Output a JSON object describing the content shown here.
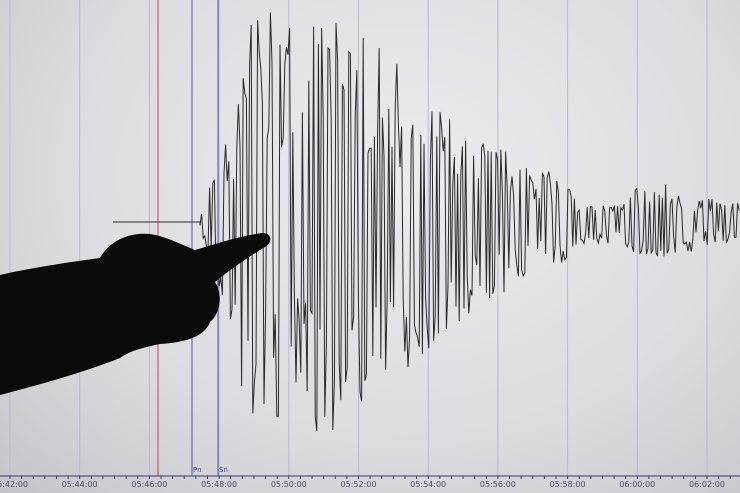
{
  "time_axis": {
    "labels": [
      "05:42:00",
      "05:44:00",
      "05:46:00",
      "05:48:00",
      "05:50:00",
      "05:52:00",
      "05:54:00",
      "05:56:00",
      "05:58:00",
      "06:00:00",
      "06:02:00"
    ]
  },
  "phases": {
    "pn": "Pn",
    "sn": "Sn"
  },
  "colors": {
    "trace": "#2a2a2a",
    "grid": "#b8b8d0",
    "marker_red": "#d04040",
    "marker_blue": "#5050b0",
    "silhouette": "#0a0a0a"
  }
}
